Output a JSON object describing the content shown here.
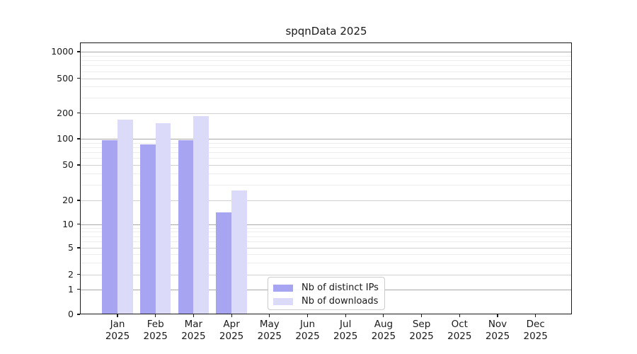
{
  "title": "spqnData 2025",
  "chart_data": {
    "type": "bar",
    "title": "spqnData 2025",
    "categories": [
      "Jan 2025",
      "Feb 2025",
      "Mar 2025",
      "Apr 2025",
      "May 2025",
      "Jun 2025",
      "Jul 2025",
      "Aug 2025",
      "Sep 2025",
      "Oct 2025",
      "Nov 2025",
      "Dec 2025"
    ],
    "x_tick_second_line": "2025",
    "series": [
      {
        "name": "Nb of distinct IPs",
        "color": "#a7a5f2",
        "values": [
          97,
          86,
          97,
          14,
          0,
          0,
          0,
          0,
          0,
          0,
          0,
          0
        ]
      },
      {
        "name": "Nb of downloads",
        "color": "#dbdaf8",
        "values": [
          167,
          152,
          185,
          26,
          0,
          0,
          0,
          0,
          0,
          0,
          0,
          0
        ]
      }
    ],
    "yscale": "symlog",
    "yticks": [
      0,
      1,
      2,
      5,
      10,
      20,
      50,
      100,
      200,
      500,
      1000
    ],
    "minor_yticks": [
      3,
      4,
      6,
      7,
      8,
      9,
      30,
      40,
      60,
      70,
      80,
      90,
      300,
      400,
      600,
      700,
      800,
      900
    ],
    "ylim": [
      0,
      1270
    ],
    "xlabel": "",
    "ylabel": "",
    "grid": true,
    "legend_position": "lower center",
    "colors": {
      "decade_gridline": "#a8a8a8",
      "major_gridline": "#d2d2d2",
      "minor_gridline": "#ededed",
      "axis": "#1a1a1a",
      "background": "#ffffff"
    }
  }
}
